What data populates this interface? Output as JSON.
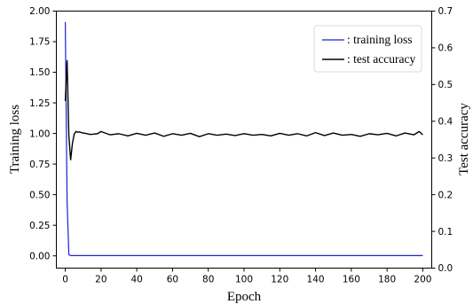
{
  "chart_data": {
    "type": "line",
    "title": "",
    "xlabel": "Epoch",
    "ylabel_left": "Training loss",
    "ylabel_right": "Test accuracy",
    "xlim": [
      -5,
      205
    ],
    "ylim_left": [
      -0.1,
      2.0
    ],
    "ylim_right": [
      0.0,
      0.7
    ],
    "x_ticks": [
      0,
      20,
      40,
      60,
      80,
      100,
      120,
      140,
      160,
      180,
      200
    ],
    "y_left_ticks": [
      "0.00",
      "0.25",
      "0.50",
      "0.75",
      "1.00",
      "1.25",
      "1.50",
      "1.75",
      "2.00"
    ],
    "y_right_ticks": [
      "0.0",
      "0.1",
      "0.2",
      "0.3",
      "0.4",
      "0.5",
      "0.6",
      "0.7"
    ],
    "grid": false,
    "legend_position": "top-right",
    "series": [
      {
        "name": ": training loss",
        "axis": "left",
        "color": "#1f1fcf",
        "x": [
          0,
          1,
          2,
          3,
          200
        ],
        "y": [
          1.91,
          0.45,
          0.01,
          0.002,
          0.002
        ]
      },
      {
        "name": ": test accuracy",
        "axis": "right",
        "color": "#000000",
        "x": [
          0,
          1,
          2,
          3,
          4,
          5,
          6,
          7,
          8,
          9,
          10,
          12,
          14,
          16,
          18,
          20,
          25,
          30,
          35,
          40,
          45,
          50,
          55,
          60,
          65,
          70,
          75,
          80,
          85,
          90,
          95,
          100,
          105,
          110,
          115,
          120,
          125,
          130,
          135,
          140,
          145,
          150,
          155,
          160,
          165,
          170,
          175,
          180,
          185,
          190,
          195,
          198,
          200
        ],
        "y": [
          0.455,
          0.565,
          0.36,
          0.295,
          0.34,
          0.365,
          0.372,
          0.37,
          0.371,
          0.369,
          0.368,
          0.366,
          0.364,
          0.365,
          0.366,
          0.372,
          0.363,
          0.366,
          0.36,
          0.367,
          0.362,
          0.368,
          0.359,
          0.366,
          0.362,
          0.367,
          0.358,
          0.366,
          0.362,
          0.365,
          0.361,
          0.366,
          0.362,
          0.364,
          0.36,
          0.367,
          0.362,
          0.366,
          0.36,
          0.369,
          0.361,
          0.368,
          0.362,
          0.364,
          0.359,
          0.366,
          0.363,
          0.367,
          0.36,
          0.368,
          0.363,
          0.372,
          0.363
        ]
      }
    ]
  }
}
